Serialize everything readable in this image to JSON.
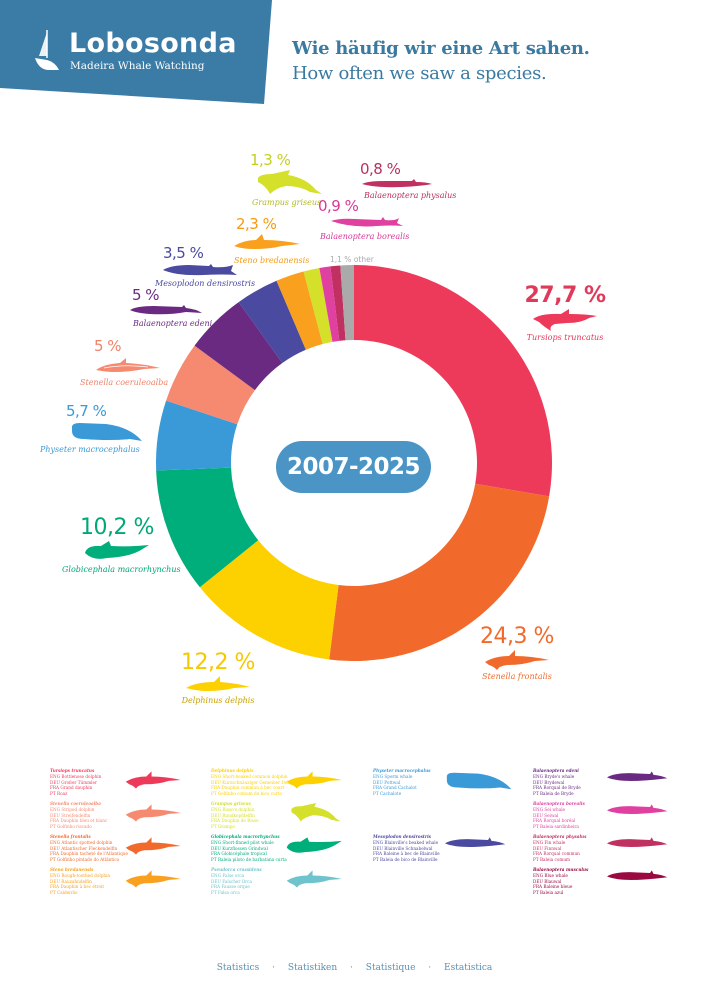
{
  "header": {
    "brand": "Lobosonda",
    "tagline": "Madeira Whale Watching",
    "title_de": "Wie häufig wir eine Art sahen.",
    "title_en": "How often we saw a species.",
    "brand_color": "#3a7ca5"
  },
  "period": "2007-2025",
  "other_label": "1,1 % other",
  "callouts": {
    "tursiops": {
      "pct": "27,7 %",
      "sci": "Tursiops truncatus"
    },
    "stenella_frontalis": {
      "pct": "24,3 %",
      "sci": "Stenella frontalis"
    },
    "delphinus": {
      "pct": "12,2 %",
      "sci": "Delphinus delphis"
    },
    "globicephala": {
      "pct": "10,2 %",
      "sci": "Globicephala macrorhynchus"
    },
    "physeter": {
      "pct": "5,7 %",
      "sci": "Physeter macrocephalus"
    },
    "stenella_coeruleoalba": {
      "pct": "5 %",
      "sci": "Stenella coeruleoalba"
    },
    "edeni": {
      "pct": "5 %",
      "sci": "Balaenoptera edeni"
    },
    "mesoplodon": {
      "pct": "3,5 %",
      "sci": "Mesoplodon densirostris"
    },
    "steno": {
      "pct": "2,3 %",
      "sci": "Steno bredanensis"
    },
    "grampus": {
      "pct": "1,3 %",
      "sci": "Grampus griseus"
    },
    "borealis": {
      "pct": "0,9 %",
      "sci": "Balaenoptera borealis"
    },
    "physalus": {
      "pct": "0,8 %",
      "sci": "Balaenoptera physalus"
    }
  },
  "chart_data": {
    "type": "pie",
    "title": "Wie häufig wir eine Art sahen. / How often we saw a species.",
    "subtitle": "2007-2025",
    "donut": true,
    "start_angle": "12 o'clock, clockwise",
    "categories": [
      "Tursiops truncatus",
      "Stenella frontalis",
      "Delphinus delphis",
      "Globicephala macrorhynchus",
      "Physeter macrocephalus",
      "Stenella coeruleoalba",
      "Balaenoptera edeni",
      "Mesoplodon densirostris",
      "Steno bredanensis",
      "Grampus griseus",
      "Balaenoptera borealis",
      "Balaenoptera physalus",
      "other"
    ],
    "values": [
      27.7,
      24.3,
      12.2,
      10.2,
      5.7,
      5.0,
      5.0,
      3.5,
      2.3,
      1.3,
      0.9,
      0.8,
      1.1
    ],
    "colors": [
      "#ee3a5a",
      "#f26a2b",
      "#fdd000",
      "#00ae7b",
      "#3a9ad8",
      "#f58a70",
      "#6a2a82",
      "#4a4aa0",
      "#f9a01e",
      "#d4e02a",
      "#e040a0",
      "#c03060",
      "#aaaaaa"
    ],
    "unit": "%"
  },
  "legend": [
    {
      "sci": "Tursiops truncatus",
      "eng": "ENG  Bottlenose dolphin",
      "deu": "DEU  Großer Tümmler",
      "fra": "FRA  Grand dauphin",
      "pt": "PT    Roaz",
      "color": "#ee3a5a"
    },
    {
      "sci": "Stenella coeruleoalba",
      "eng": "ENG  Striped dolphin",
      "deu": "DEU  Streifendelfin",
      "fra": "FRA  Dauphin bleu et blanc",
      "pt": "PT    Golfinho riscado",
      "color": "#f58a70"
    },
    {
      "sci": "Stenella frontalis",
      "eng": "ENG  Atlantic spotted dolphin",
      "deu": "DEU  Atlantischer Fleckendelfin",
      "fra": "FRA  Dauphin tacheté de l'Atlantique",
      "pt": "PT    Golfinho pintado do Atlântico",
      "color": "#f26a2b"
    },
    {
      "sci": "Steno bredanensis",
      "eng": "ENG  Rough-toothed dolphin",
      "deu": "DEU  Rauzahndelfin",
      "fra": "FRA  Dauphin à bec étroit",
      "pt": "PT    Caldeirão",
      "color": "#f9a01e"
    },
    {
      "sci": "Delphinus delphis",
      "eng": "ENG  Short-beaked common dolphin",
      "deu": "DEU  Kurzschnäuziger Gemeiner Delfin",
      "fra": "FRA  Dauphin commun à bec court",
      "pt": "PT    Golfinho comum de bico curto",
      "color": "#fdd000"
    },
    {
      "sci": "Grampus griseus",
      "eng": "ENG  Risso's dolphin",
      "deu": "DEU  Rundkopfdelfin",
      "fra": "FRA  Dauphin de Risso",
      "pt": "PT    Grampo",
      "color": "#d4e02a"
    },
    {
      "sci": "Globicephala macrorhynchus",
      "eng": "ENG  Short-finned pilot whale",
      "deu": "DEU  Kurzflossen Grindwal",
      "fra": "FRA  Globicéphale tropical",
      "pt": "PT    Baleia piloto de barbatana curta",
      "color": "#00ae7b"
    },
    {
      "sci": "Pseudorca crassidens",
      "eng": "ENG  False orca",
      "deu": "DEU  Falscher Orca",
      "fra": "FRA  Fausse orque",
      "pt": "PT    Falsa orca",
      "color": "#6ec3cc"
    },
    {
      "sci": "Physeter macrocephalus",
      "eng": "ENG  Sperm whale",
      "deu": "DEU  Pottwal",
      "fra": "FRA  Grand Cachalot",
      "pt": "PT    Cachalote",
      "color": "#3a9ad8"
    },
    {
      "sci": "Mesoplodon densirostris",
      "eng": "ENG  Blainville's beaked whale",
      "deu": "DEU  Blainville Schnabelwal",
      "fra": "FRA  Baleine à bec de Blainville",
      "pt": "PT    Baleia de bico de Blainville",
      "color": "#4a4aa0"
    },
    {
      "sci": "Balaenoptera edeni",
      "eng": "ENG  Bryde's whale",
      "deu": "DEU  Brydewal",
      "fra": "FRA  Rorqual de Bryde",
      "pt": "PT    Baleia de Bryde",
      "color": "#6a2a82"
    },
    {
      "sci": "Balaenoptera borealis",
      "eng": "ENG  Sei whale",
      "deu": "DEU  Seiwal",
      "fra": "FRA  Rorqual boréal",
      "pt": "PT    Baleia sardinheira",
      "color": "#e040a0"
    },
    {
      "sci": "Balaenoptera physalus",
      "eng": "ENG  Fin whale",
      "deu": "DEU  Finnwal",
      "fra": "FRA  Rorqual commun",
      "pt": "PT    Baleia comum",
      "color": "#c03060"
    },
    {
      "sci": "Balaenoptera musculus",
      "eng": "ENG  Blue whale",
      "deu": "DEU  Blauwal",
      "fra": "FRA  Baleine bleue",
      "pt": "PT    Baleia azul",
      "color": "#9a0a40"
    }
  ],
  "footer": {
    "items": [
      "Statistics",
      "Statistiken",
      "Statistique",
      "Estatistica"
    ],
    "separator": "·"
  }
}
